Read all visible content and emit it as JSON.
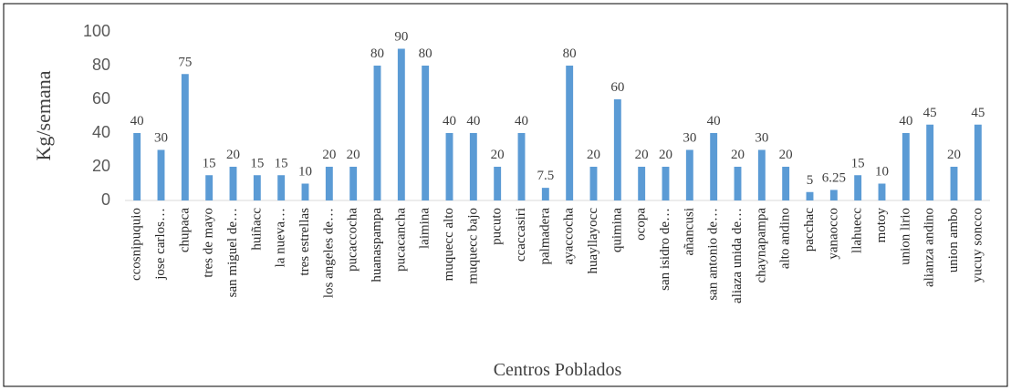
{
  "chart_data": {
    "type": "bar",
    "x_label": "Centros Poblados",
    "y_label": "Kg/semana",
    "categories": [
      "ccosnipuquio",
      "jose carlos…",
      "chupaca",
      "tres de mayo",
      "san miguel de…",
      "huiñacc",
      "la nueva…",
      "tres estrellas",
      "los angeles de…",
      "pucaccocha",
      "huanaspampa",
      "pucacancha",
      "laimina",
      "muquecc alto",
      "muquecc bajo",
      "pucuto",
      "ccaccasiri",
      "palmadera",
      "ayaccocha",
      "huayllayocc",
      "quimina",
      "ocopa",
      "san isidro de…",
      "añancusi",
      "san antonio de…",
      "aliaza unida de…",
      "chaynapampa",
      "alto andino",
      "pacchac",
      "yanaocco",
      "llahuecc",
      "motoy",
      "union lirio",
      "alianza andino",
      "union ambo",
      "yucuy soncco"
    ],
    "values": [
      40,
      30,
      75,
      15,
      20,
      15,
      15,
      10,
      20,
      20,
      80,
      90,
      80,
      40,
      40,
      20,
      40,
      7.5,
      80,
      20,
      60,
      20,
      20,
      30,
      40,
      20,
      30,
      20,
      5,
      6.25,
      15,
      10,
      40,
      45,
      20,
      45
    ],
    "color": "#5b9bd5",
    "ylim": [
      0,
      100
    ],
    "yticks": [
      0,
      20,
      40,
      60,
      80,
      100
    ],
    "grid": false
  }
}
